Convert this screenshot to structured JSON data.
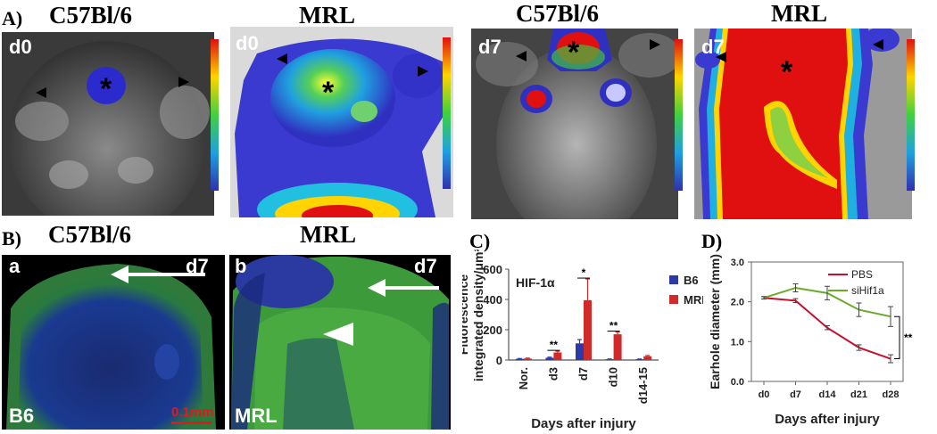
{
  "panelA": {
    "letter": "A)",
    "titles": [
      "C57Bl/6",
      "MRL",
      "C57Bl/6",
      "MRL"
    ],
    "day_labels": [
      "d0",
      "d0",
      "d7",
      "d7"
    ]
  },
  "panelB": {
    "letter": "B)",
    "titles": [
      "C57Bl/6",
      "MRL"
    ],
    "subpanel_a": "a",
    "subpanel_b": "b",
    "day_a": "d7",
    "day_b": "d7",
    "strain_a": "B6",
    "strain_b": "MRL",
    "scale_bar": "0.1mm"
  },
  "colors": {
    "b6": "#2b3aa8",
    "mrl": "#d12a2a",
    "pbs": "#c8102e",
    "sihif": "#6aaa2a"
  },
  "chart_data": [
    {
      "type": "bar",
      "panel_letter": "C)",
      "inset_label": "HIF-1α",
      "ylabel": "Fluorescence integrated density/μm²",
      "xlabel": "Days after injury",
      "categories": [
        "Nor.",
        "d3",
        "d7",
        "d10",
        "d14-15"
      ],
      "ylim": [
        0,
        600
      ],
      "yticks": [
        0,
        200,
        400,
        600
      ],
      "series": [
        {
          "name": "B6",
          "values": [
            8,
            15,
            110,
            5,
            5
          ],
          "errors": [
            2,
            4,
            25,
            2,
            2
          ]
        },
        {
          "name": "MRL",
          "values": [
            10,
            50,
            395,
            170,
            25
          ],
          "errors": [
            3,
            8,
            140,
            15,
            5
          ]
        }
      ],
      "significance": [
        "",
        "**",
        "*",
        "**",
        ""
      ]
    },
    {
      "type": "line",
      "panel_letter": "D)",
      "ylabel": "Earhole diameter (mm)",
      "xlabel": "Days after injury",
      "categories": [
        "d0",
        "d7",
        "d14",
        "d21",
        "d28"
      ],
      "ylim": [
        0,
        3.0
      ],
      "yticks": [
        "0.0",
        "1.0",
        "2.0",
        "3.0"
      ],
      "series": [
        {
          "name": "PBS",
          "values": [
            2.1,
            2.03,
            1.35,
            0.85,
            0.57
          ],
          "errors": [
            0.03,
            0.05,
            0.05,
            0.07,
            0.1
          ]
        },
        {
          "name": "siHif1a",
          "values": [
            2.1,
            2.35,
            2.22,
            1.8,
            1.63
          ],
          "errors": [
            0.03,
            0.1,
            0.17,
            0.17,
            0.25
          ]
        }
      ],
      "significance": "**"
    }
  ]
}
